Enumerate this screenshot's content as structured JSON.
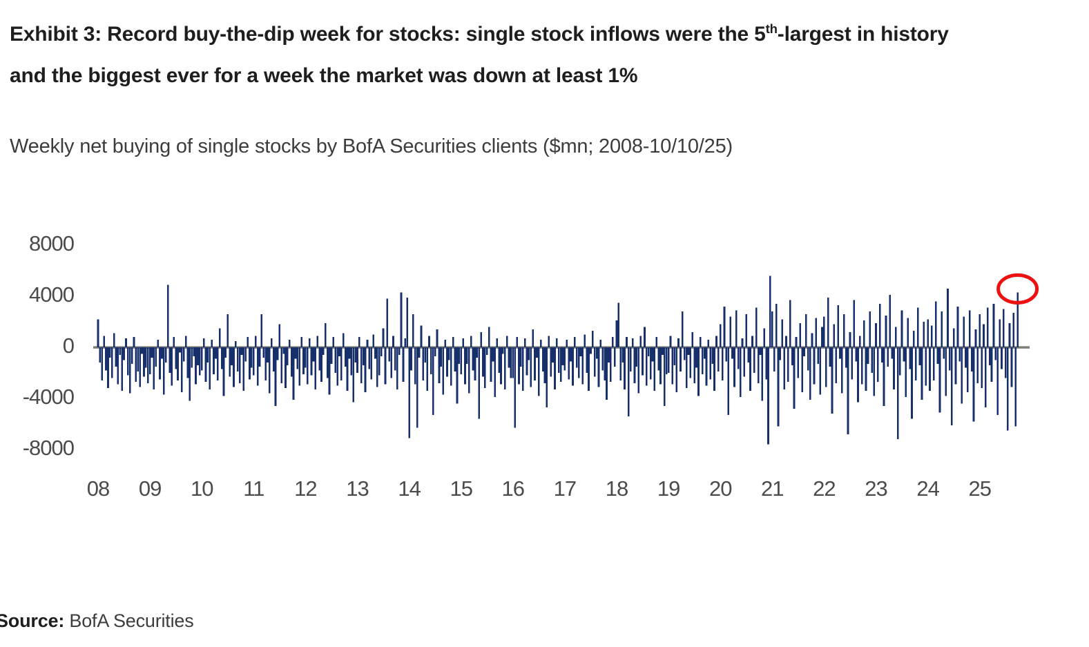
{
  "title": {
    "line1_pre": "Exhibit 3: Record buy-the-dip week for stocks: single stock inflows were the 5",
    "line1_sup": "th",
    "line1_post": "-largest in history",
    "line2": "and the biggest ever for a week the market was down at least 1%"
  },
  "subtitle": "Weekly net buying of single stocks by BofA Securities clients ($mn; 2008-10/10/25)",
  "source": {
    "label": "Source:",
    "text": " BofA Securities"
  },
  "colors": {
    "bar_navy": "#17306b",
    "zero_line_gray": "#7d7d76",
    "axis_label_gray": "#4b4b4b",
    "annotation_red": "#ee1111",
    "title_black": "#1e1e1e",
    "subtitle_gray": "#3c3c3c"
  },
  "chart_data": {
    "type": "bar",
    "title": "Weekly net buying of single stocks by BofA Securities clients ($mn; 2008-10/10/25)",
    "xlabel": "",
    "ylabel": "$mn",
    "ylim": [
      -8000,
      8000
    ],
    "grid": false,
    "legend": "none",
    "y_ticks": [
      8000,
      4000,
      0,
      -4000,
      -8000
    ],
    "x_ticks": [
      "08",
      "09",
      "10",
      "11",
      "12",
      "13",
      "14",
      "15",
      "16",
      "17",
      "18",
      "19",
      "20",
      "21",
      "22",
      "23",
      "24",
      "25"
    ],
    "x_range_years": [
      2008,
      2025.78
    ],
    "bar_color": "#17306b",
    "zero_line_color": "#7d7d76",
    "annotation": {
      "shape": "ellipse-outline",
      "color": "#ee1111",
      "meaning": "record buy-the-dip week, final data point 10/10/25, approx +4300 $mn",
      "target": "last-bar"
    },
    "series": [
      {
        "name": "Weekly net buying ($mn)",
        "start_year": 2008,
        "points_per_year": 26,
        "values": [
          2200,
          -1200,
          -2600,
          900,
          -1800,
          -3200,
          -800,
          -2400,
          1100,
          -1500,
          -2900,
          -600,
          -3400,
          -1000,
          700,
          -2200,
          -3600,
          -1300,
          800,
          -2700,
          -1900,
          -3100,
          -500,
          -2300,
          -1600,
          -2800,
          -2100,
          -800,
          -3300,
          -1500,
          600,
          -2500,
          -900,
          -3700,
          -1200,
          4900,
          -2000,
          -3000,
          800,
          -1700,
          -2600,
          -400,
          -3500,
          -1100,
          900,
          -2400,
          -4200,
          -1600,
          -700,
          -2900,
          -1400,
          -2200,
          -1800,
          700,
          -2700,
          -1200,
          -3300,
          600,
          -2100,
          -900,
          -2600,
          1500,
          -1700,
          -3800,
          -800,
          2600,
          -2300,
          -1400,
          -3100,
          500,
          -1900,
          -2800,
          -600,
          -3400,
          -1100,
          800,
          -2500,
          -1600,
          -2200,
          900,
          -3000,
          -1500,
          2600,
          -800,
          -2600,
          -1200,
          -3600,
          700,
          -1900,
          -4600,
          -1000,
          1800,
          -2800,
          -500,
          -3200,
          -1400,
          600,
          -2300,
          -4100,
          -900,
          -1700,
          -3000,
          800,
          -2100,
          -1600,
          -2900,
          700,
          -2200,
          -1100,
          -3300,
          900,
          -1800,
          -2700,
          -600,
          1900,
          -2400,
          -3700,
          -1300,
          800,
          -2000,
          -3000,
          -700,
          -2600,
          1100,
          -1500,
          -3400,
          -900,
          -2200,
          -4300,
          -1200,
          -2000,
          800,
          -2800,
          -1400,
          -3500,
          600,
          -1700,
          -2500,
          1000,
          -900,
          -3100,
          -2200,
          -700,
          1500,
          -2900,
          3800,
          -1100,
          -2400,
          900,
          -1800,
          -3300,
          -600,
          4300,
          -2700,
          700,
          3900,
          -7100,
          -1800,
          2600,
          -2900,
          -6300,
          -800,
          1700,
          -2600,
          -1200,
          -3400,
          900,
          -2100,
          -5300,
          -700,
          1400,
          -2800,
          -1500,
          -3700,
          600,
          -2300,
          -1000,
          -3000,
          800,
          -1900,
          -4400,
          -1300,
          -2100,
          700,
          -2900,
          -1300,
          -3600,
          900,
          -1800,
          -2600,
          -800,
          -5600,
          1200,
          -2300,
          -3200,
          -600,
          1600,
          -2700,
          -1100,
          -3900,
          700,
          -2000,
          -2900,
          -500,
          -3300,
          900,
          -1600,
          -2400,
          -2400,
          -6300,
          800,
          -2900,
          -1500,
          -3400,
          700,
          -2200,
          -1000,
          -3100,
          1400,
          -2600,
          -800,
          -3800,
          600,
          -1900,
          -2800,
          -4700,
          900,
          -2300,
          -1200,
          -3300,
          700,
          -2000,
          -2700,
          -1400,
          -1800,
          600,
          -2500,
          -1100,
          -3000,
          800,
          -1600,
          -2400,
          -700,
          -2900,
          1000,
          -2000,
          -3400,
          -500,
          1300,
          -2300,
          -900,
          -3100,
          600,
          -1800,
          -2600,
          -4100,
          -1200,
          -2700,
          800,
          -1500,
          2100,
          3500,
          -2600,
          -1200,
          -3300,
          800,
          -5400,
          -1900,
          700,
          -2800,
          -1500,
          -3600,
          900,
          -2200,
          1600,
          -3000,
          -700,
          -2500,
          -1100,
          -3400,
          800,
          -1800,
          -2900,
          -600,
          -4600,
          -2100,
          -2000,
          900,
          -2900,
          -1400,
          -3500,
          700,
          -1900,
          2800,
          -1000,
          -3200,
          -600,
          -2400,
          1200,
          -2800,
          -1600,
          -3800,
          800,
          -2100,
          -900,
          -3000,
          600,
          -2500,
          -1300,
          -3400,
          900,
          -1900,
          1800,
          -2600,
          3200,
          -1100,
          -5300,
          2400,
          -900,
          -3100,
          2900,
          -1700,
          -3900,
          700,
          -2300,
          2600,
          -1200,
          -3400,
          900,
          -2000,
          3100,
          -2800,
          -600,
          -4200,
          1500,
          -2500,
          -7600,
          5600,
          2800,
          -1900,
          3400,
          -6200,
          -1000,
          2200,
          -3300,
          900,
          -2700,
          3700,
          -1400,
          -4800,
          800,
          -2400,
          1900,
          -3500,
          -700,
          2600,
          -1800,
          -4100,
          1100,
          -2900,
          2300,
          -1300,
          -3700,
          1600,
          2400,
          -3100,
          3900,
          -1500,
          -5200,
          1800,
          -2800,
          3300,
          -900,
          -3600,
          2600,
          -1600,
          -6800,
          1200,
          -2500,
          3700,
          -1100,
          -4300,
          900,
          -2900,
          2100,
          -3400,
          -1300,
          2800,
          -2000,
          -3800,
          1900,
          -2700,
          3400,
          -1200,
          -4600,
          2500,
          -1500,
          4100,
          -900,
          -3300,
          1600,
          -7200,
          -2200,
          2900,
          -1100,
          -3900,
          2300,
          -1700,
          -5600,
          1300,
          -2600,
          3100,
          -1400,
          -4100,
          2000,
          -3000,
          2200,
          -3400,
          1700,
          -2600,
          3600,
          -1300,
          -5100,
          2800,
          -900,
          -3800,
          4600,
          -1800,
          -6100,
          1500,
          -2900,
          3200,
          -1100,
          -4400,
          2400,
          -1600,
          -3500,
          2900,
          -1900,
          -5800,
          1400,
          -2800,
          2600,
          -3200,
          1800,
          -4700,
          3100,
          -1400,
          -2700,
          3400,
          -1000,
          -5300,
          2200,
          -1700,
          3000,
          -2400,
          -6500,
          1900,
          -3100,
          2700,
          -6200,
          4300
        ]
      }
    ]
  }
}
